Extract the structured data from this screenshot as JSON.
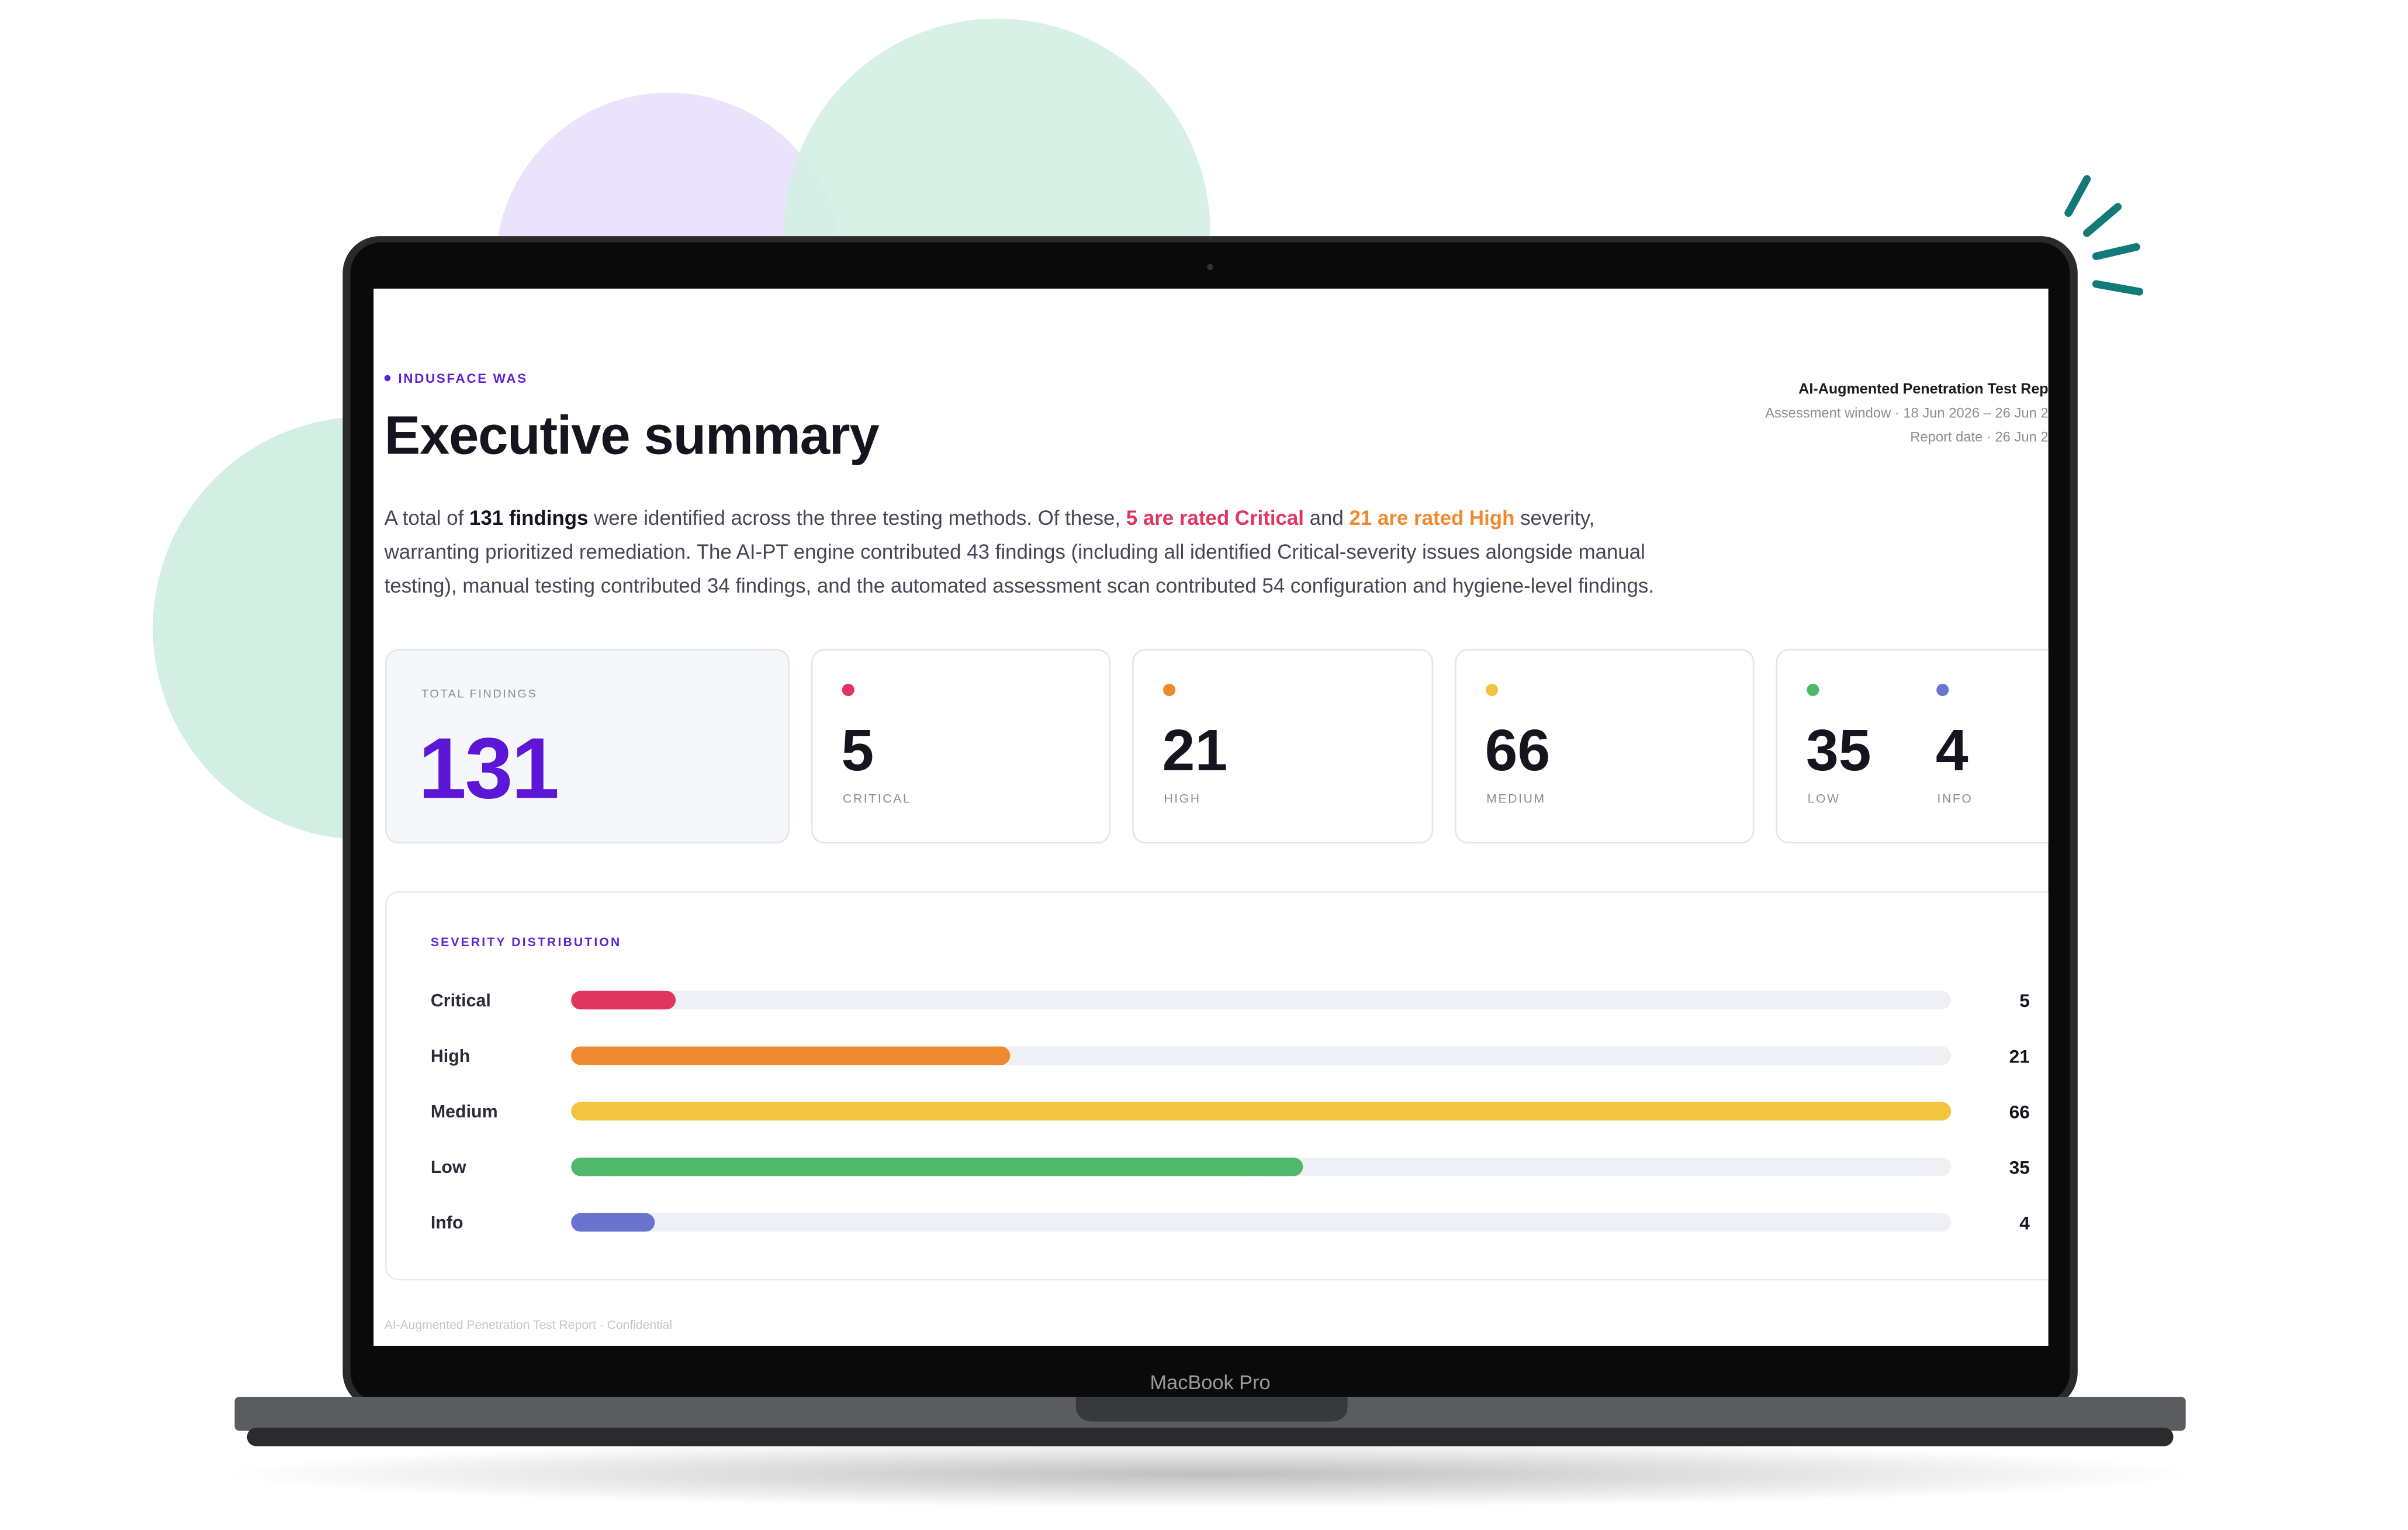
{
  "header": {
    "eyebrow": "INDUSFACE WAS",
    "title": "Executive summary",
    "meta": [
      "AI-Augmented Penetration Test Rep",
      "Assessment window · 18 Jun 2026 – 26 Jun 2",
      "Report date · 26 Jun 2"
    ]
  },
  "summary": {
    "lines": [
      [
        {
          "text": "A total of "
        },
        {
          "text": "131 findings",
          "emphasis": "bold"
        },
        {
          "text": " were identified across the three testing methods. Of these, "
        },
        {
          "text": "5 are rated Critical",
          "emphasis": "critical"
        },
        {
          "text": " and "
        },
        {
          "text": "21 are rated High",
          "emphasis": "high"
        },
        {
          "text": " severity,"
        }
      ],
      [
        {
          "text": "warranting prioritized remediation. The AI-PT engine contributed 43 findings (including all identified Critical-severity issues alongside manual"
        }
      ],
      [
        {
          "text": "testing), manual testing contributed 34 findings, and the automated assessment scan contributed 54 configuration and hygiene-level findings."
        }
      ]
    ]
  },
  "stats": {
    "total": {
      "label": "TOTAL FINDINGS",
      "value": 131
    },
    "cards": [
      {
        "label": "CRITICAL",
        "value": 5,
        "color": "#e0355f"
      },
      {
        "label": "HIGH",
        "value": 21,
        "color": "#f08a30"
      },
      {
        "label": "MEDIUM",
        "value": 66,
        "color": "#f2c440"
      },
      {
        "label": "LOW",
        "value": 35,
        "color": "#4fb86b"
      },
      {
        "label": "INFO",
        "value": 4,
        "color": "#6b73d0"
      }
    ]
  },
  "chart_data": {
    "type": "bar",
    "orientation": "horizontal",
    "title": "SEVERITY DISTRIBUTION",
    "categories": [
      "Critical",
      "High",
      "Medium",
      "Low",
      "Info"
    ],
    "values": [
      5,
      21,
      66,
      35,
      4
    ],
    "colors": [
      "#e0355f",
      "#f08a30",
      "#f2c440",
      "#4fb86b",
      "#6b73d0"
    ]
  },
  "footer": "AI-Augmented Penetration Test Report · Confidential",
  "device_label": "MacBook Pro"
}
